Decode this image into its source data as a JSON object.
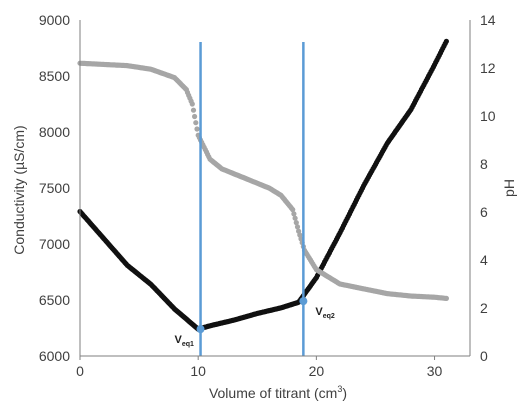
{
  "chart_data": {
    "type": "scatter",
    "title": "",
    "xlabel": "Volume of titrant (cm",
    "xlabel_superscript": "3",
    "xlabel_suffix": ")",
    "ylabel": "Conductivity (µS/cm)",
    "y2label": "pH",
    "xlim": [
      0,
      33
    ],
    "ylim": [
      6000,
      9000
    ],
    "y2lim": [
      0,
      14
    ],
    "xticks": [
      0,
      10,
      20,
      30
    ],
    "yticks": [
      6000,
      6500,
      7000,
      7500,
      8000,
      8500,
      9000
    ],
    "y2ticks": [
      0,
      2,
      4,
      6,
      8,
      10,
      12,
      14
    ],
    "grid": false,
    "series": [
      {
        "axis": "left",
        "color": "#111111",
        "points": [
          [
            0,
            7290
          ],
          [
            2,
            7050
          ],
          [
            4,
            6810
          ],
          [
            6,
            6640
          ],
          [
            8,
            6420
          ],
          [
            10,
            6240
          ],
          [
            11,
            6270
          ],
          [
            13,
            6320
          ],
          [
            15,
            6380
          ],
          [
            17,
            6430
          ],
          [
            18.5,
            6480
          ],
          [
            20,
            6700
          ],
          [
            22,
            7100
          ],
          [
            24,
            7520
          ],
          [
            26,
            7900
          ],
          [
            28,
            8200
          ],
          [
            30,
            8600
          ],
          [
            31,
            8810
          ]
        ]
      },
      {
        "axis": "right",
        "color": "#a6a6a6",
        "points": [
          [
            0,
            12.2
          ],
          [
            2,
            12.15
          ],
          [
            4,
            12.1
          ],
          [
            6,
            11.95
          ],
          [
            8,
            11.6
          ],
          [
            9,
            11.1
          ],
          [
            9.5,
            10.5
          ],
          [
            10,
            9.2
          ],
          [
            11,
            8.2
          ],
          [
            12,
            7.8
          ],
          [
            14,
            7.4
          ],
          [
            16,
            7.0
          ],
          [
            17,
            6.7
          ],
          [
            18,
            6.1
          ],
          [
            18.5,
            5.2
          ],
          [
            19,
            4.4
          ],
          [
            20,
            3.6
          ],
          [
            22,
            3.0
          ],
          [
            24,
            2.8
          ],
          [
            26,
            2.6
          ],
          [
            28,
            2.5
          ],
          [
            30,
            2.45
          ],
          [
            31,
            2.4
          ]
        ]
      }
    ],
    "equivalence_lines": [
      {
        "x": 10.2,
        "label": "V",
        "sub": "eq1",
        "marker_y": 6240,
        "color": "#5b9bd5"
      },
      {
        "x": 18.9,
        "label": "V",
        "sub": "eq2",
        "marker_y": 6490,
        "color": "#5b9bd5"
      }
    ]
  }
}
